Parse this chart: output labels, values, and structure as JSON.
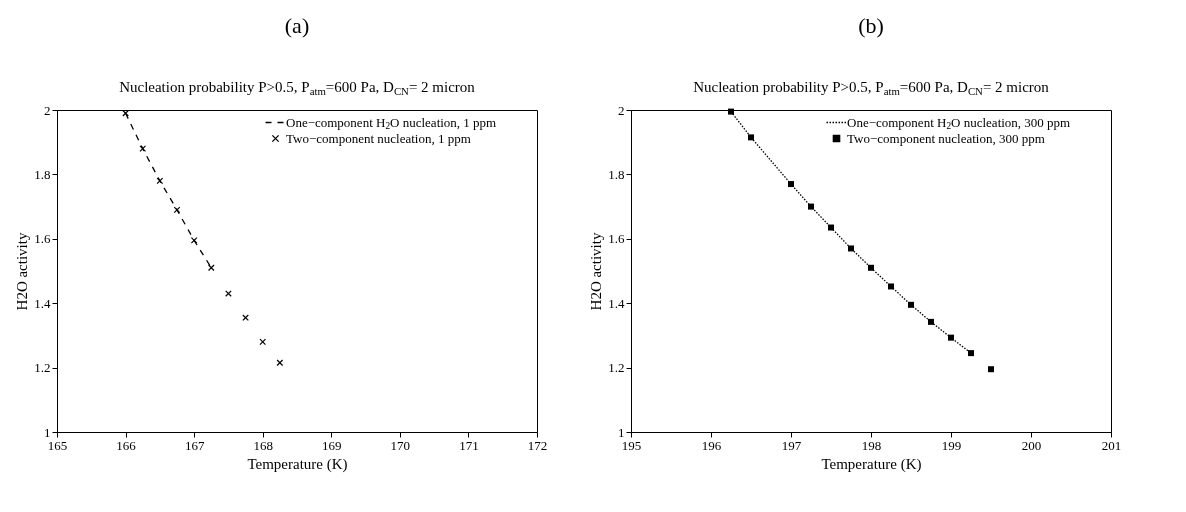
{
  "chart_data": [
    {
      "type": "scatter",
      "title": "Nucleation probability P>0.5, P$_{atm}$=600 Pa, D$_{CN}$= 2 micron",
      "annotations": [
        "(a)"
      ],
      "xlabel": "Temperature (K)",
      "ylabel": "H2O activity",
      "xlim": [
        165,
        172
      ],
      "xticks": [
        165,
        166,
        167,
        168,
        169,
        170,
        171,
        172
      ],
      "ylim": [
        1,
        2
      ],
      "yticks": [
        1,
        1.2,
        1.4,
        1.6,
        1.8,
        2
      ],
      "legend": "top right",
      "grid": false,
      "series": [
        {
          "name": "One−component H$_{2}$O nucleation, 1 ppm",
          "type": "line",
          "line_style": "dashed",
          "marker": "none",
          "color": "#000000",
          "x": [
            166,
            166.25,
            166.5,
            166.75,
            167,
            167.25
          ],
          "values": [
            1.99,
            1.88,
            1.78,
            1.69,
            1.595,
            1.51
          ]
        },
        {
          "name": "Two−component nucleation, 1 ppm",
          "type": "scatter",
          "marker": "cross",
          "color": "#000000",
          "x": [
            166,
            166.25,
            166.5,
            166.75,
            167,
            167.25,
            167.5,
            167.75,
            168,
            168.25
          ],
          "values": [
            1.99,
            1.88,
            1.78,
            1.69,
            1.595,
            1.51,
            1.43,
            1.355,
            1.28,
            1.215
          ]
        }
      ]
    },
    {
      "type": "scatter",
      "title": "Nucleation probability P>0.5, P$_{atm}$=600 Pa, D$_{CN}$= 2 micron",
      "annotations": [
        "(b)"
      ],
      "xlabel": "Temperature (K)",
      "ylabel": "H2O activity",
      "xlim": [
        195,
        201
      ],
      "xticks": [
        195,
        196,
        197,
        198,
        199,
        200,
        201
      ],
      "ylim": [
        1,
        2
      ],
      "yticks": [
        1,
        1.2,
        1.4,
        1.6,
        1.8,
        2
      ],
      "legend": "top right",
      "grid": false,
      "series": [
        {
          "name": "One−component H$_{2}$O nucleation, 300 ppm",
          "type": "line",
          "line_style": "dotted",
          "marker": "none",
          "color": "#000000",
          "x": [
            196.25,
            196.5,
            197,
            197.25,
            197.5,
            197.75,
            198,
            198.25,
            198.5,
            198.75,
            199,
            199.25
          ],
          "values": [
            1.995,
            1.915,
            1.77,
            1.7,
            1.635,
            1.57,
            1.51,
            1.452,
            1.395,
            1.342,
            1.293,
            1.245
          ]
        },
        {
          "name": "Two−component nucleation, 300 ppm",
          "type": "scatter",
          "marker": "square",
          "color": "#000000",
          "x": [
            196.25,
            196.5,
            197,
            197.25,
            197.5,
            197.75,
            198,
            198.25,
            198.5,
            198.75,
            199,
            199.25,
            199.5
          ],
          "values": [
            1.995,
            1.915,
            1.77,
            1.7,
            1.635,
            1.57,
            1.51,
            1.452,
            1.395,
            1.342,
            1.293,
            1.245,
            1.195
          ]
        }
      ]
    }
  ]
}
